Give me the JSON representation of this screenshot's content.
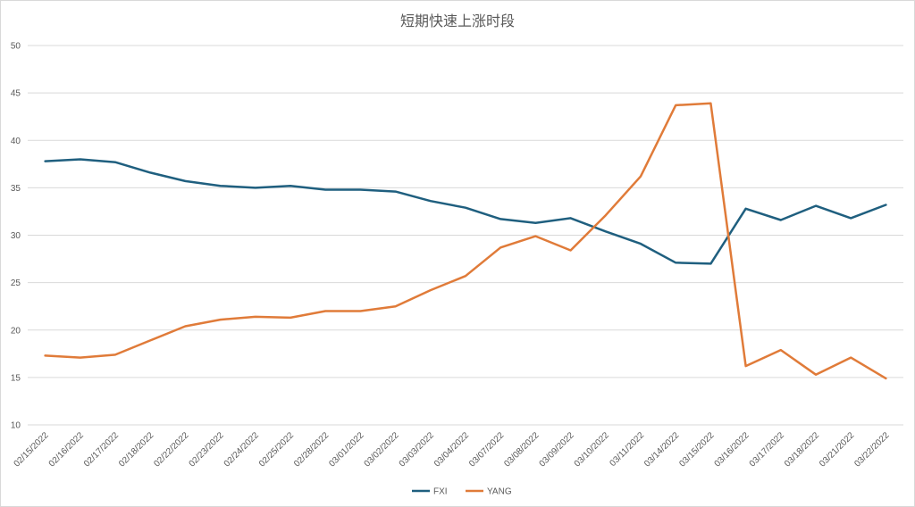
{
  "chart_data": {
    "type": "line",
    "title": "短期快速上涨时段",
    "xlabel": "",
    "ylabel": "",
    "ylim": [
      10,
      50
    ],
    "yticks": [
      10,
      15,
      20,
      25,
      30,
      35,
      40,
      45,
      50
    ],
    "grid": true,
    "legend_position": "bottom",
    "categories": [
      "02/15/2022",
      "02/16/2022",
      "02/17/2022",
      "02/18/2022",
      "02/22/2022",
      "02/23/2022",
      "02/24/2022",
      "02/25/2022",
      "02/28/2022",
      "03/01/2022",
      "03/02/2022",
      "03/03/2022",
      "03/04/2022",
      "03/07/2022",
      "03/08/2022",
      "03/09/2022",
      "03/10/2022",
      "03/11/2022",
      "03/14/2022",
      "03/15/2022",
      "03/16/2022",
      "03/17/2022",
      "03/18/2022",
      "03/21/2022",
      "03/22/2022"
    ],
    "series": [
      {
        "name": "FXI",
        "color": "#1f5f7f",
        "values": [
          37.8,
          38.0,
          37.7,
          36.6,
          35.7,
          35.2,
          35.0,
          35.2,
          34.8,
          34.8,
          34.6,
          33.6,
          32.9,
          31.7,
          31.3,
          31.8,
          30.4,
          29.1,
          27.1,
          27.0,
          32.8,
          31.6,
          33.1,
          31.8,
          33.2
        ]
      },
      {
        "name": "YANG",
        "color": "#e07b39",
        "values": [
          17.3,
          17.1,
          17.4,
          18.9,
          20.4,
          21.1,
          21.4,
          21.3,
          22.0,
          22.0,
          22.5,
          24.2,
          25.7,
          28.7,
          29.9,
          28.4,
          32.1,
          36.2,
          43.7,
          43.9,
          16.2,
          17.9,
          15.3,
          17.1,
          14.9
        ]
      }
    ]
  }
}
